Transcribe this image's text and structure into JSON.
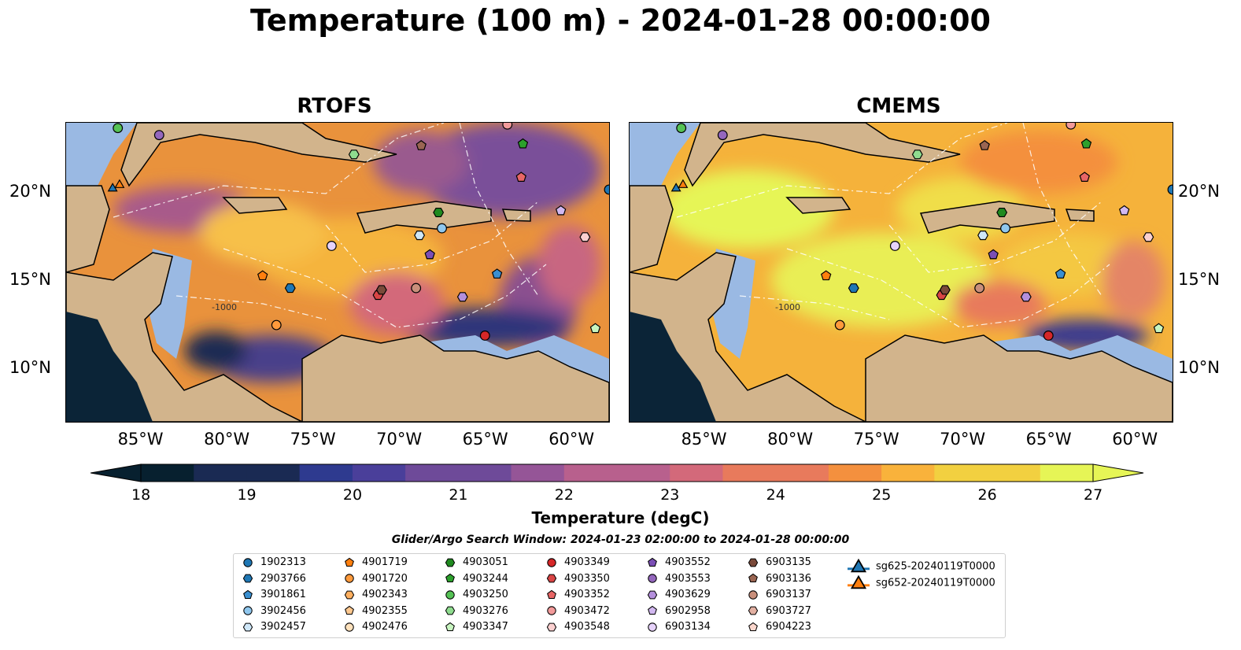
{
  "title": "Temperature (100 m) - 2024-01-28 00:00:00",
  "panels": [
    {
      "title": "RTOFS"
    },
    {
      "title": "CMEMS"
    }
  ],
  "axes": {
    "lon_ticks": [
      "85°W",
      "80°W",
      "75°W",
      "70°W",
      "65°W",
      "60°W"
    ],
    "lat_ticks": [
      "20°N",
      "15°N",
      "10°N"
    ],
    "lon_range": [
      -89.5,
      -58.0
    ],
    "lat_range": [
      7.0,
      24.0
    ]
  },
  "colorbar": {
    "label": "Temperature (degC)",
    "ticks": [
      "18",
      "19",
      "20",
      "21",
      "22",
      "23",
      "24",
      "25",
      "26",
      "27"
    ],
    "range": [
      18,
      27
    ],
    "extend": "both",
    "colormap": [
      "#07202f",
      "#1a2a53",
      "#2e3a8f",
      "#4a3f9a",
      "#6e4a99",
      "#955597",
      "#b8608d",
      "#d3697a",
      "#e87a5c",
      "#f4903e",
      "#f9b23b",
      "#f2d040",
      "#e6f556"
    ]
  },
  "search_window": "Glider/Argo Search Window: 2024-01-23 02:00:00 to 2024-01-28 00:00:00",
  "legend": [
    {
      "label": "1902313",
      "marker": "circle",
      "color": "#1f77b4"
    },
    {
      "label": "2903766",
      "marker": "hexagon",
      "color": "#1f77b4"
    },
    {
      "label": "3901861",
      "marker": "pentagon",
      "color": "#3a8fd0"
    },
    {
      "label": "3902456",
      "marker": "circle",
      "color": "#8fc7ee"
    },
    {
      "label": "3902457",
      "marker": "hexagon",
      "color": "#cfe7f8"
    },
    {
      "label": "4901719",
      "marker": "pentagon",
      "color": "#ff7f0e"
    },
    {
      "label": "4901720",
      "marker": "circle",
      "color": "#ff9a3c"
    },
    {
      "label": "4902343",
      "marker": "hexagon",
      "color": "#ffb060"
    },
    {
      "label": "4902355",
      "marker": "pentagon",
      "color": "#ffc88f"
    },
    {
      "label": "4902476",
      "marker": "circle",
      "color": "#ffe2bd"
    },
    {
      "label": "4903051",
      "marker": "hexagon",
      "color": "#1f8a1f"
    },
    {
      "label": "4903244",
      "marker": "pentagon",
      "color": "#2ca02c"
    },
    {
      "label": "4903250",
      "marker": "circle",
      "color": "#55c255"
    },
    {
      "label": "4903276",
      "marker": "hexagon",
      "color": "#8fdc8f"
    },
    {
      "label": "4903347",
      "marker": "pentagon",
      "color": "#c8f5c0"
    },
    {
      "label": "4903349",
      "marker": "circle",
      "color": "#d62728"
    },
    {
      "label": "4903350",
      "marker": "hexagon",
      "color": "#d94545"
    },
    {
      "label": "4903352",
      "marker": "pentagon",
      "color": "#e86666"
    },
    {
      "label": "4903472",
      "marker": "circle",
      "color": "#f29a9a"
    },
    {
      "label": "4903548",
      "marker": "hexagon",
      "color": "#fbd0d0"
    },
    {
      "label": "4903552",
      "marker": "pentagon",
      "color": "#7b4fb5"
    },
    {
      "label": "4903553",
      "marker": "circle",
      "color": "#9467bd"
    },
    {
      "label": "4903629",
      "marker": "hexagon",
      "color": "#b48fdc"
    },
    {
      "label": "6902958",
      "marker": "pentagon",
      "color": "#d2b8f0"
    },
    {
      "label": "6903134",
      "marker": "circle",
      "color": "#e6d2fa"
    },
    {
      "label": "6903135",
      "marker": "hexagon",
      "color": "#7a4a3a"
    },
    {
      "label": "6903136",
      "marker": "pentagon",
      "color": "#9a6552"
    },
    {
      "label": "6903137",
      "marker": "circle",
      "color": "#c98f7b"
    },
    {
      "label": "6903727",
      "marker": "hexagon",
      "color": "#e2b0a2"
    },
    {
      "label": "6904223",
      "marker": "pentagon",
      "color": "#fbd6cc"
    },
    {
      "label": "sg625-20240119T0000",
      "marker": "triangle-line",
      "color": "#1f77b4"
    },
    {
      "label": "sg652-20240119T0000",
      "marker": "triangle-line",
      "color": "#ff7f0e"
    }
  ],
  "floats": [
    {
      "id": "1902313",
      "lon": -58.0,
      "lat": 20.2
    },
    {
      "id": "2903766",
      "lon": -76.5,
      "lat": 14.6
    },
    {
      "id": "3901861",
      "lon": -64.5,
      "lat": 15.4
    },
    {
      "id": "3902456",
      "lon": -67.7,
      "lat": 18.0
    },
    {
      "id": "3902457",
      "lon": -69.0,
      "lat": 17.6
    },
    {
      "id": "4901719",
      "lon": -78.1,
      "lat": 15.3
    },
    {
      "id": "4901720",
      "lon": -77.3,
      "lat": 12.5
    },
    {
      "id": "4903051",
      "lon": -67.9,
      "lat": 18.9
    },
    {
      "id": "4903244",
      "lon": -63.0,
      "lat": 22.8
    },
    {
      "id": "4903250",
      "lon": -86.5,
      "lat": 23.7
    },
    {
      "id": "4903276",
      "lon": -72.8,
      "lat": 22.2
    },
    {
      "id": "4903347",
      "lon": -58.8,
      "lat": 12.3
    },
    {
      "id": "4903349",
      "lon": -65.2,
      "lat": 11.9
    },
    {
      "id": "4903350",
      "lon": -71.4,
      "lat": 14.2
    },
    {
      "id": "4903352",
      "lon": -63.1,
      "lat": 20.9
    },
    {
      "id": "4903472",
      "lon": -63.9,
      "lat": 23.9
    },
    {
      "id": "4903548",
      "lon": -59.4,
      "lat": 17.5
    },
    {
      "id": "4903552",
      "lon": -68.4,
      "lat": 16.5
    },
    {
      "id": "4903553",
      "lon": -84.1,
      "lat": 23.3
    },
    {
      "id": "4903629",
      "lon": -66.5,
      "lat": 14.1
    },
    {
      "id": "6902958",
      "lon": -60.8,
      "lat": 19.0
    },
    {
      "id": "6903134",
      "lon": -74.1,
      "lat": 17.0
    },
    {
      "id": "6903135",
      "lon": -71.2,
      "lat": 14.5
    },
    {
      "id": "6903136",
      "lon": -68.9,
      "lat": 22.7
    },
    {
      "id": "6903137",
      "lon": -69.2,
      "lat": 14.6
    },
    {
      "id": "sg625",
      "lon": -86.8,
      "lat": 20.3
    },
    {
      "id": "sg652",
      "lon": -86.4,
      "lat": 20.5
    }
  ],
  "isobath_label": "-1000"
}
